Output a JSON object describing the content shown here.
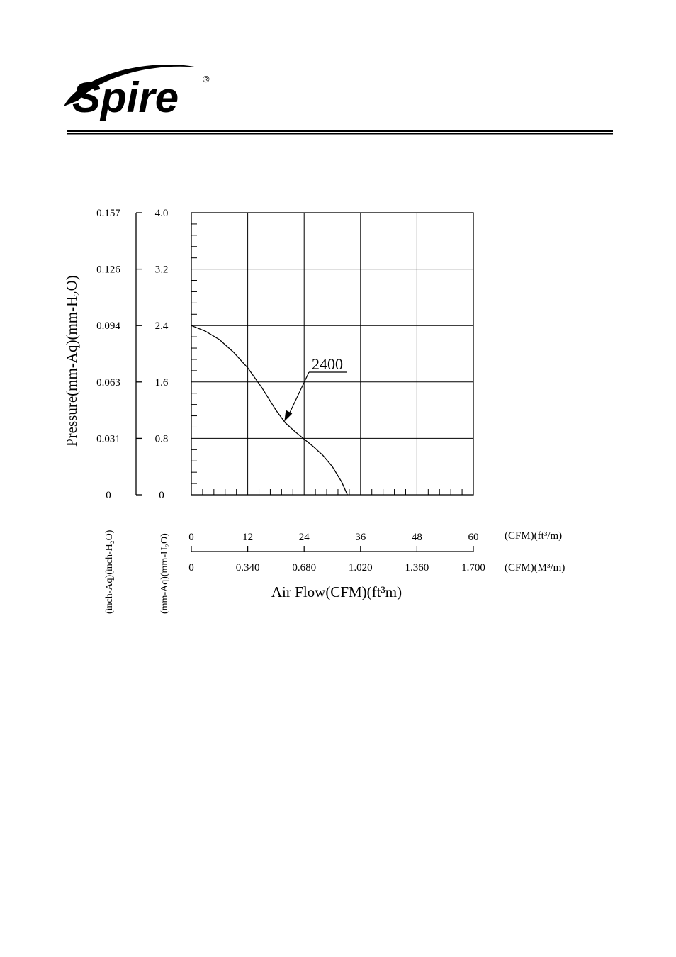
{
  "logo": {
    "text": "Spire",
    "mark": "®"
  },
  "chart_data": {
    "type": "line",
    "title": "",
    "ylabel": "Pressure(mm-Aq)(mm-H₂O)",
    "xlabel": "Air Flow(CFM)(ft³m)",
    "y_axis_units": [
      "(inch-Aq)(inch-H₂O)",
      "(mm-Aq)(mm-H₂O)"
    ],
    "x_axis_units": [
      "(CFM)(ft³/m)",
      "(CFM)(M³/m)"
    ],
    "y_ticks_inch": [
      "0",
      "0.031",
      "0.063",
      "0.094",
      "0.126",
      "0.157"
    ],
    "y_ticks_mm": [
      "0",
      "0.8",
      "1.6",
      "2.4",
      "3.2",
      "4.0"
    ],
    "x_ticks_cfm": [
      "0",
      "12",
      "24",
      "36",
      "48",
      "60"
    ],
    "x_ticks_m3": [
      "0",
      "0.340",
      "0.680",
      "1.020",
      "1.360",
      "1.700"
    ],
    "xlim": [
      0,
      60
    ],
    "ylim": [
      0,
      4.0
    ],
    "grid": true,
    "series": [
      {
        "name": "2400",
        "x": [
          0,
          3,
          6,
          9,
          12,
          15,
          18,
          20,
          22,
          24,
          26,
          28,
          30,
          32,
          33.2
        ],
        "y": [
          2.4,
          2.32,
          2.2,
          2.02,
          1.8,
          1.52,
          1.2,
          1.02,
          0.9,
          0.79,
          0.68,
          0.56,
          0.4,
          0.18,
          0.0
        ]
      }
    ],
    "annotation": {
      "text": "2400"
    }
  }
}
